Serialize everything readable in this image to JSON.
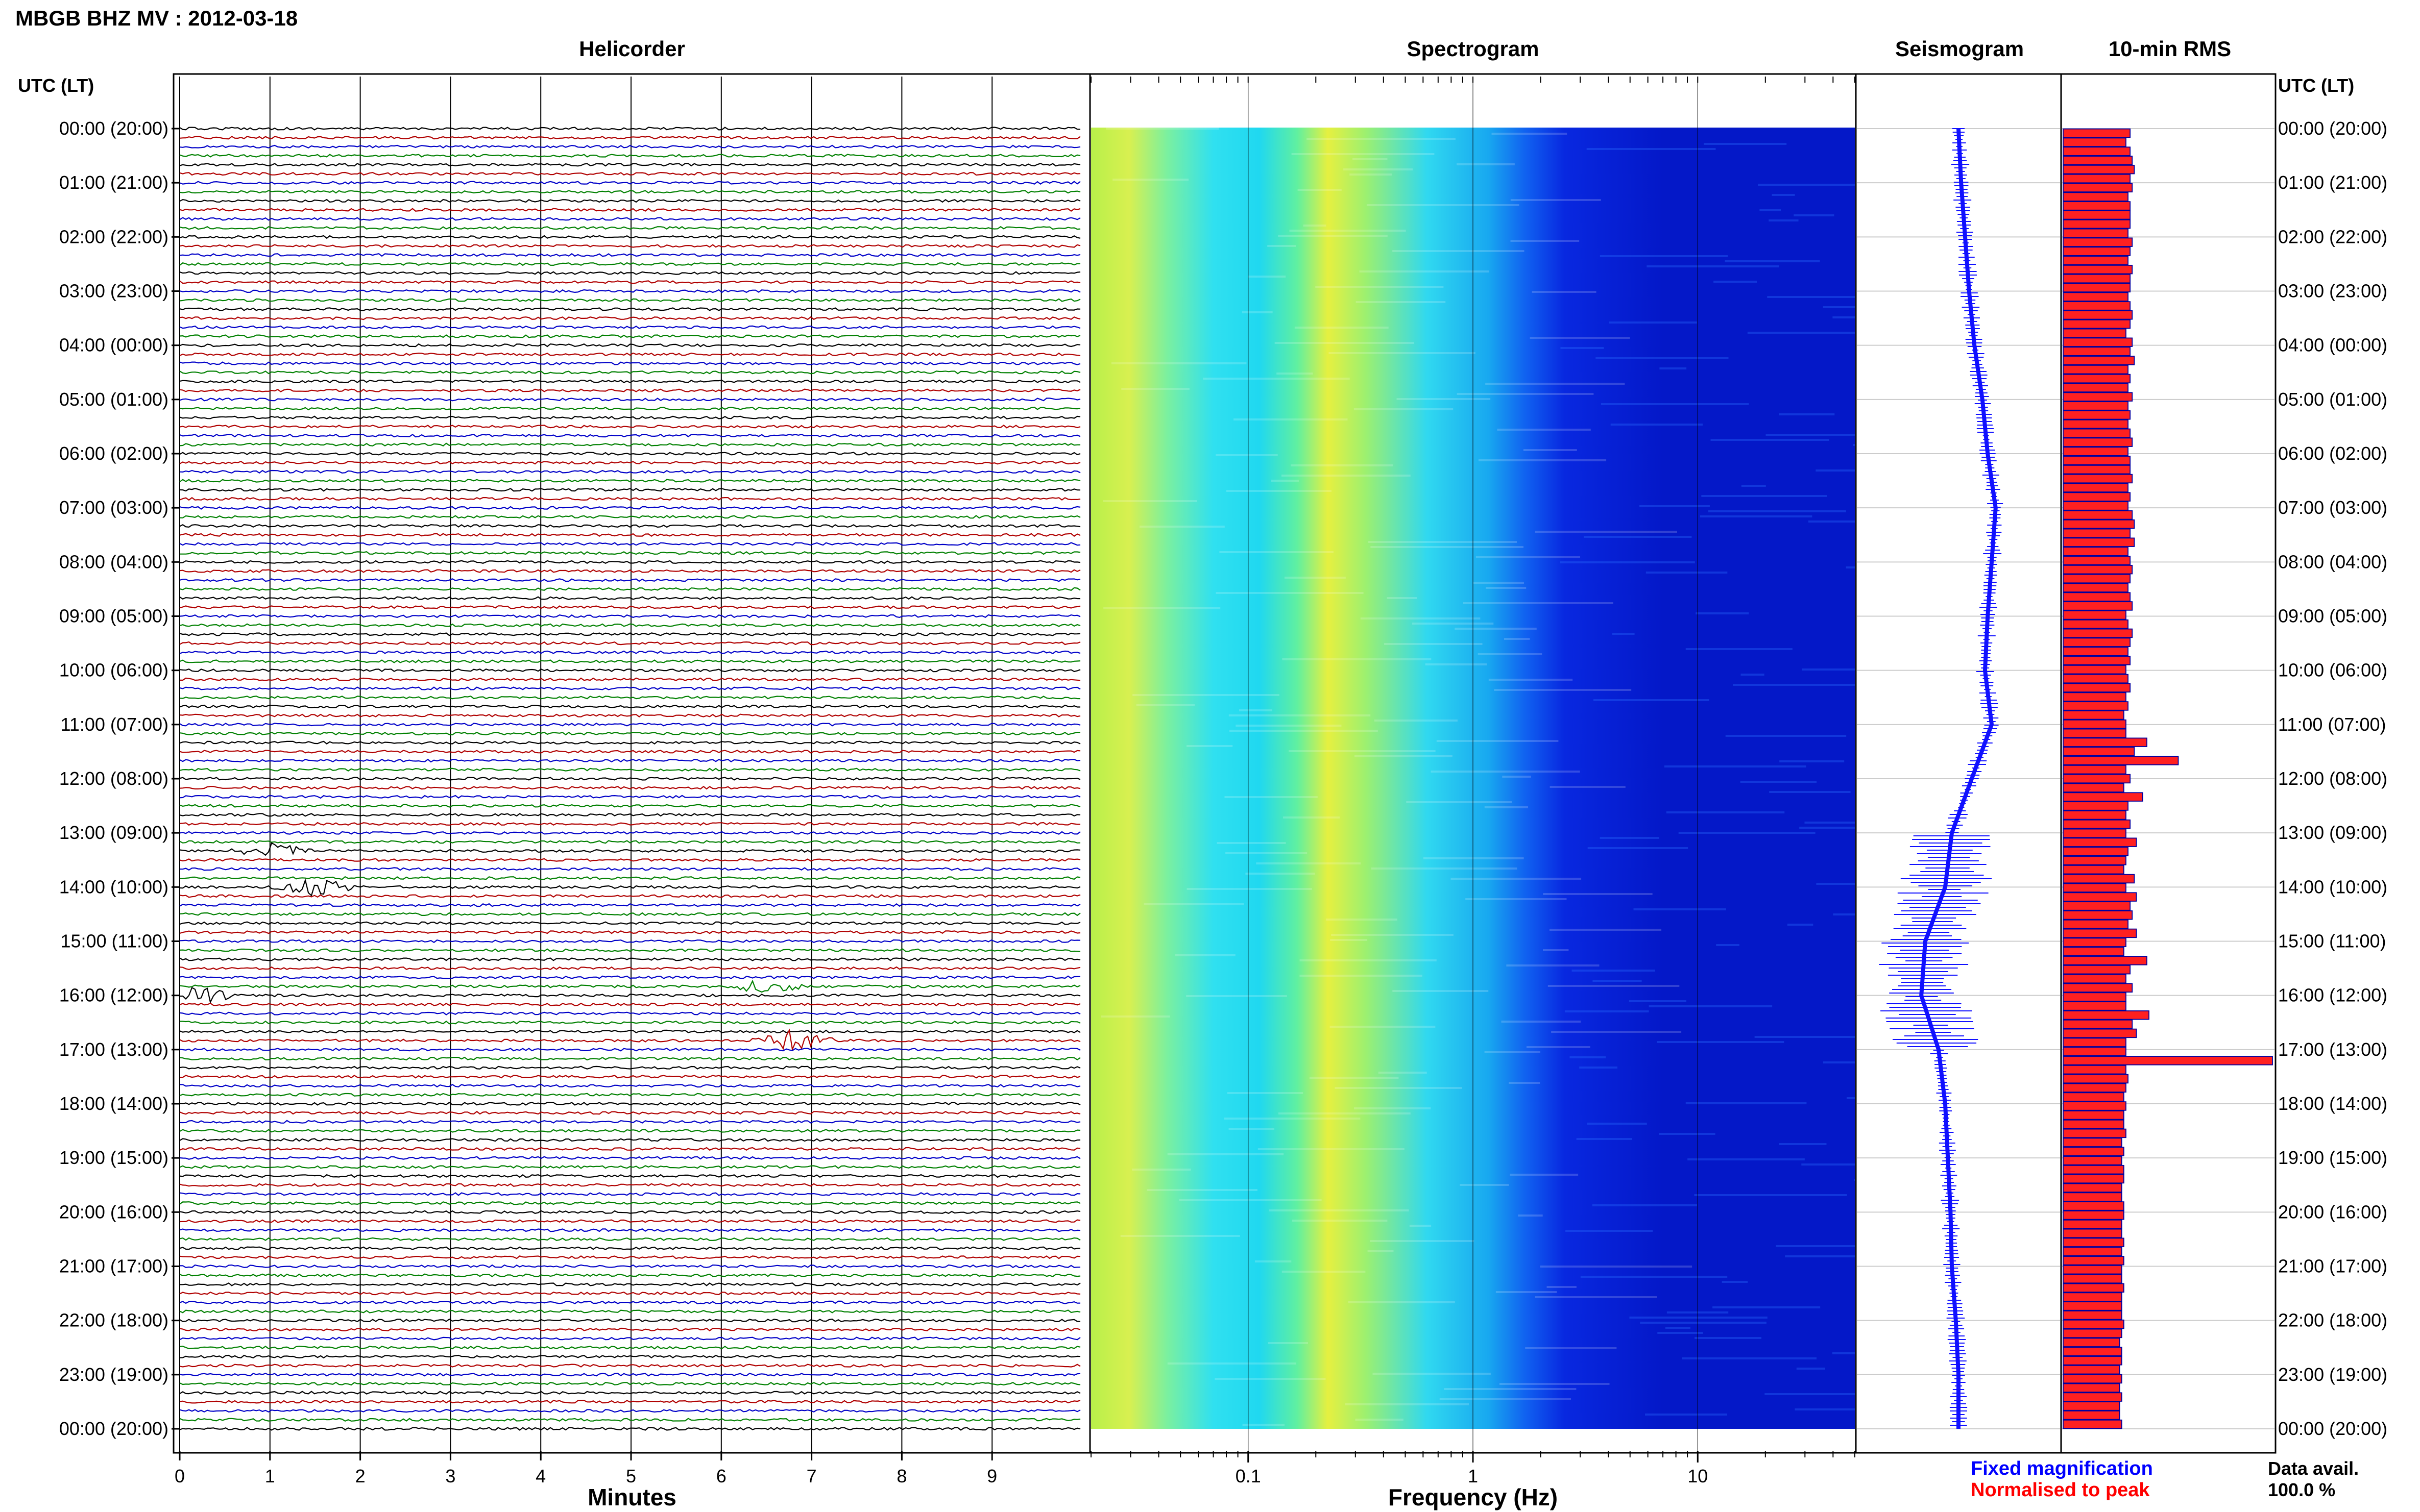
{
  "header": {
    "station_title": "MBGB BHZ MV : 2012-03-18"
  },
  "panels": {
    "helicorder_title": "Helicorder",
    "spectrogram_title": "Spectrogram",
    "seismogram_title": "Seismogram",
    "rms_title": "10-min RMS"
  },
  "axes": {
    "time_axis_label": "UTC (LT)",
    "minutes_label": "Minutes",
    "frequency_label": "Frequency (Hz)"
  },
  "footer": {
    "fixed_magnification": "Fixed magnification",
    "normalised_to_peak": "Normalised to peak",
    "data_avail_label": "Data avail.",
    "data_avail_value": "100.0 %"
  },
  "colors": {
    "trace_cycle": [
      "#000000",
      "#b00000",
      "#0000c8",
      "#008000"
    ],
    "seismogram": "#1010ff",
    "rms_fill": "#ff2020",
    "rms_outline": "#0000a0",
    "fixed_magnification": "#0000ff",
    "normalised_to_peak": "#ff0000"
  },
  "chart_data": [
    {
      "type": "line",
      "title": "Helicorder",
      "xlabel": "Minutes",
      "ylabel": "UTC (LT)",
      "x_ticks": [
        "0",
        "1",
        "2",
        "3",
        "4",
        "5",
        "6",
        "7",
        "8",
        "9"
      ],
      "xlim": [
        0,
        10
      ],
      "rows_per_hour": 6,
      "hour_labels": [
        "00:00 (20:00)",
        "01:00 (21:00)",
        "02:00 (22:00)",
        "03:00 (23:00)",
        "04:00 (00:00)",
        "05:00 (01:00)",
        "06:00 (02:00)",
        "07:00 (03:00)",
        "08:00 (04:00)",
        "09:00 (05:00)",
        "10:00 (06:00)",
        "11:00 (07:00)",
        "12:00 (08:00)",
        "13:00 (09:00)",
        "14:00 (10:00)",
        "15:00 (11:00)",
        "16:00 (12:00)",
        "17:00 (13:00)",
        "18:00 (14:00)",
        "19:00 (15:00)",
        "20:00 (16:00)",
        "21:00 (17:00)",
        "22:00 (18:00)",
        "23:00 (19:00)",
        "00:00 (20:00)"
      ],
      "events": [
        {
          "utc": "13:20",
          "minute": 1.0,
          "amplitude": 2.2
        },
        {
          "utc": "14:00",
          "minute": 1.5,
          "amplitude": 2.8
        },
        {
          "utc": "15:50",
          "minute": 6.5,
          "amplitude": 2.0
        },
        {
          "utc": "16:00",
          "minute": 0.2,
          "amplitude": 3.0
        },
        {
          "utc": "16:50",
          "minute": 6.8,
          "amplitude": 3.5
        }
      ]
    },
    {
      "type": "heatmap",
      "title": "Spectrogram",
      "xlabel": "Frequency (Hz)",
      "x_scale": "log",
      "xlim": [
        0.02,
        50
      ],
      "x_ticks": [
        "0.1",
        "1",
        "10"
      ],
      "energy_bands_hz": [
        [
          0.02,
          0.05,
          "yellow-green"
        ],
        [
          0.05,
          0.15,
          "cyan"
        ],
        [
          0.15,
          0.6,
          "yellow"
        ],
        [
          0.6,
          2.0,
          "cyan"
        ],
        [
          2.0,
          50,
          "blue"
        ]
      ]
    },
    {
      "type": "line",
      "title": "Seismogram",
      "description_values": "long-period drift of trace with wider spikes near 14:00-17:00 UTC",
      "offsets": [
        0,
        0.02,
        0.05,
        0.08,
        0.12,
        0.18,
        0.22,
        0.28,
        0.25,
        0.22,
        0.2,
        0.25,
        0.1,
        -0.05,
        -0.1,
        -0.25,
        -0.28,
        -0.15,
        -0.1,
        -0.08,
        -0.06,
        -0.05,
        -0.02,
        0.0,
        0.0
      ]
    },
    {
      "type": "bar",
      "title": "10-min RMS",
      "orientation": "horizontal",
      "legend": [
        "Fixed magnification",
        "Normalised to peak"
      ],
      "values": [
        0.32,
        0.3,
        0.32,
        0.33,
        0.34,
        0.32,
        0.33,
        0.31,
        0.32,
        0.32,
        0.32,
        0.31,
        0.33,
        0.32,
        0.31,
        0.33,
        0.32,
        0.32,
        0.31,
        0.32,
        0.33,
        0.32,
        0.3,
        0.33,
        0.32,
        0.34,
        0.31,
        0.32,
        0.31,
        0.33,
        0.31,
        0.32,
        0.31,
        0.32,
        0.33,
        0.31,
        0.32,
        0.32,
        0.33,
        0.31,
        0.32,
        0.31,
        0.33,
        0.34,
        0.32,
        0.34,
        0.31,
        0.32,
        0.33,
        0.32,
        0.31,
        0.32,
        0.33,
        0.3,
        0.31,
        0.33,
        0.32,
        0.31,
        0.32,
        0.3,
        0.31,
        0.32,
        0.3,
        0.31,
        0.29,
        0.3,
        0.3,
        0.4,
        0.34,
        0.55,
        0.3,
        0.32,
        0.29,
        0.38,
        0.31,
        0.3,
        0.32,
        0.3,
        0.35,
        0.31,
        0.3,
        0.29,
        0.34,
        0.3,
        0.35,
        0.32,
        0.33,
        0.31,
        0.35,
        0.3,
        0.29,
        0.4,
        0.32,
        0.3,
        0.33,
        0.3,
        0.3,
        0.41,
        0.33,
        0.35,
        0.3,
        0.3,
        1.0,
        0.3,
        0.31,
        0.3,
        0.29,
        0.3,
        0.29,
        0.29,
        0.3,
        0.28,
        0.29,
        0.28,
        0.29,
        0.29,
        0.28,
        0.28,
        0.29,
        0.29,
        0.28,
        0.28,
        0.29,
        0.28,
        0.29,
        0.28,
        0.28,
        0.29,
        0.28,
        0.28,
        0.28,
        0.29,
        0.28,
        0.27,
        0.28,
        0.28,
        0.27,
        0.28,
        0.27,
        0.28,
        0.27,
        0.27,
        0.28
      ]
    }
  ]
}
